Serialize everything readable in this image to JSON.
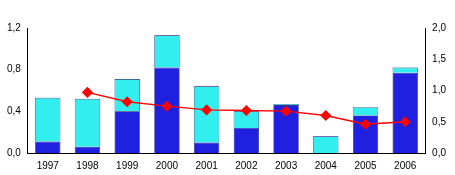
{
  "chart_data": {
    "type": "bar",
    "stacked": true,
    "grid": false,
    "categories": [
      "1997",
      "1998",
      "1999",
      "2000",
      "2001",
      "2002",
      "2003",
      "2004",
      "2005",
      "2006"
    ],
    "series": [
      {
        "type": "bar",
        "color": "#2020e0",
        "values": [
          0.11,
          0.06,
          0.4,
          0.82,
          0.1,
          0.24,
          0.46,
          0,
          0.36,
          0.77
        ]
      },
      {
        "type": "bar",
        "color": "#33eeee",
        "values": [
          0.42,
          0.46,
          0.31,
          0.31,
          0.54,
          0.16,
          0.01,
          0.16,
          0.08,
          0.05
        ]
      },
      {
        "type": "line",
        "axis": "y2",
        "color": "#ff0000",
        "marker": "diamond",
        "line_style": "solid",
        "values": [
          null,
          0.97,
          0.82,
          0.75,
          0.69,
          0.68,
          0.67,
          0.6,
          0.46,
          0.5
        ]
      }
    ],
    "ylim": [
      0,
      1.2
    ],
    "yticks": [
      {
        "value": 0,
        "label": "0,0"
      },
      {
        "value": 0.4,
        "label": "0,4"
      },
      {
        "value": 0.8,
        "label": "0,8"
      },
      {
        "value": 1.2,
        "label": "1,2"
      }
    ],
    "y2lim": [
      0,
      2.0
    ],
    "y2ticks": [
      {
        "value": 0,
        "label": "0,0"
      },
      {
        "value": 0.5,
        "label": "0,5"
      },
      {
        "value": 1.0,
        "label": "1,0"
      },
      {
        "value": 1.5,
        "label": "1,5"
      },
      {
        "value": 2.0,
        "label": "2,0"
      }
    ]
  }
}
